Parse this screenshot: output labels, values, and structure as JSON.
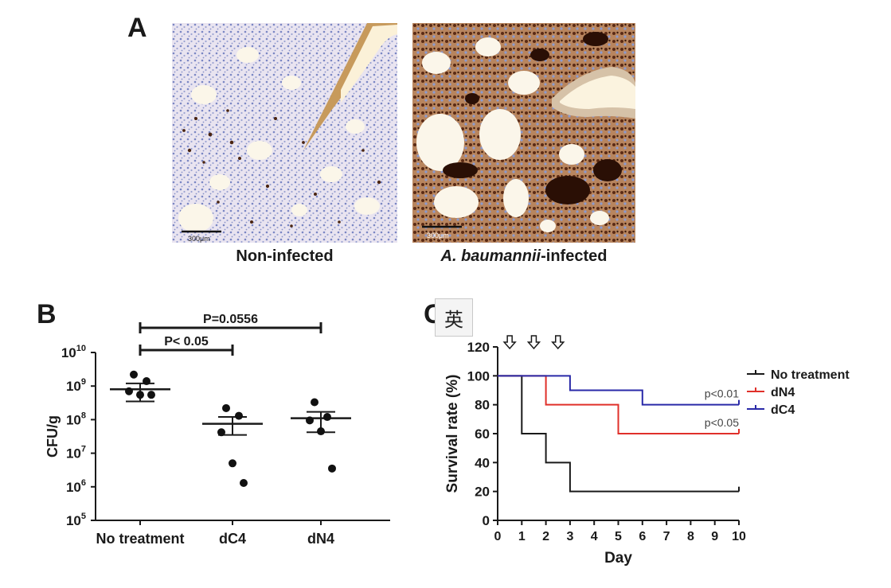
{
  "panel_a": {
    "letter": "A",
    "images": [
      {
        "caption": "Non-infected",
        "scale_bar": "300μm"
      },
      {
        "caption_italic": "A. baumannii",
        "caption_rest": "-infected",
        "scale_bar": "300μm"
      }
    ]
  },
  "panel_b": {
    "letter": "B"
  },
  "panel_c": {
    "letter": "C"
  },
  "overlay_badge": {
    "text": "英",
    "icon": "translate-icon"
  },
  "chart_data": [
    {
      "type": "scatter",
      "title": "",
      "ylabel": "CFU/g",
      "xlabel": "",
      "y_scale": "log",
      "ylim": [
        100000,
        10000000000
      ],
      "y_ticks": [
        {
          "base": "10",
          "exp": "5",
          "value": 100000
        },
        {
          "base": "10",
          "exp": "6",
          "value": 1000000
        },
        {
          "base": "10",
          "exp": "7",
          "value": 10000000
        },
        {
          "base": "10",
          "exp": "8",
          "value": 100000000
        },
        {
          "base": "10",
          "exp": "9",
          "value": 1000000000
        },
        {
          "base": "10",
          "exp": "10",
          "value": 10000000000
        }
      ],
      "categories": [
        "No treatment",
        "dC4",
        "dN4"
      ],
      "points": [
        [
          2200000000,
          1400000000,
          700000000,
          550000000,
          550000000
        ],
        [
          220000000,
          130000000,
          42000000,
          5000000,
          1300000
        ],
        [
          330000000,
          120000000,
          95000000,
          45000000,
          3500000
        ]
      ],
      "mean": [
        800000000,
        75000000,
        110000000
      ],
      "sem_low": [
        350000000,
        35000000,
        42000000
      ],
      "sem_high": [
        1200000000,
        120000000,
        170000000
      ],
      "significance": [
        {
          "from": "No treatment",
          "to": "dC4",
          "label": "P< 0.05"
        },
        {
          "from": "No treatment",
          "to": "dN4",
          "label": "P=0.0556"
        }
      ],
      "grid": false
    },
    {
      "type": "line",
      "step": true,
      "title": "",
      "xlabel": "Day",
      "ylabel": "Survival rate (%)",
      "xlim": [
        0,
        10
      ],
      "ylim": [
        0,
        120
      ],
      "x_ticks": [
        0,
        1,
        2,
        3,
        4,
        5,
        6,
        7,
        8,
        9,
        10
      ],
      "y_ticks": [
        0,
        20,
        40,
        60,
        80,
        100,
        120
      ],
      "series": [
        {
          "name": "No treatment",
          "color": "#1a1a1a",
          "x": [
            0,
            1,
            2,
            3,
            10
          ],
          "y": [
            100,
            60,
            40,
            20,
            20
          ],
          "annotation": ""
        },
        {
          "name": "dN4",
          "color": "#e0302a",
          "x": [
            0,
            2,
            5,
            10
          ],
          "y": [
            100,
            80,
            60,
            60
          ],
          "annotation": "p<0.05"
        },
        {
          "name": "dC4",
          "color": "#2a2aa8",
          "x": [
            0,
            3,
            6,
            10
          ],
          "y": [
            100,
            90,
            80,
            80
          ],
          "annotation": "p<0.01"
        }
      ],
      "arrows_at_days": [
        0.5,
        1.5,
        2.5
      ],
      "legend": "top-right",
      "grid": false
    }
  ]
}
